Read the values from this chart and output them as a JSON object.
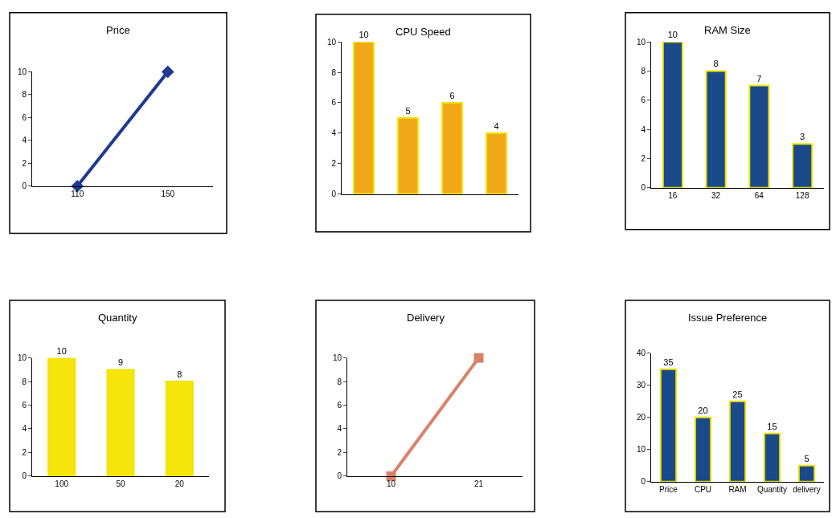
{
  "chart_data": [
    {
      "type": "line",
      "title": "Price",
      "categories": [
        "110",
        "150"
      ],
      "values": [
        0,
        10
      ],
      "color": "#1f3a93",
      "marker": "diamond",
      "ylim": [
        0,
        10
      ],
      "yticks": [
        0,
        2,
        4,
        6,
        8,
        10
      ]
    },
    {
      "type": "bar",
      "title": "CPU Speed",
      "categories": [
        null,
        null,
        null,
        null
      ],
      "values": [
        10,
        5,
        6,
        4
      ],
      "color": "#f0a818",
      "ylim": [
        0,
        10
      ],
      "yticks": [
        0,
        2,
        4,
        6,
        8,
        10
      ],
      "data_labels": true
    },
    {
      "type": "bar",
      "title": "RAM Size",
      "categories": [
        "16",
        "32",
        "64",
        "128"
      ],
      "values": [
        10,
        8,
        7,
        3
      ],
      "color": "#1a4a8a",
      "ylim": [
        0,
        10
      ],
      "yticks": [
        0,
        2,
        4,
        6,
        8,
        10
      ],
      "data_labels": true
    },
    {
      "type": "bar",
      "title": "Quantity",
      "categories": [
        "100",
        "50",
        "20"
      ],
      "values": [
        10,
        9,
        8
      ],
      "color": "#f5e50a",
      "ylim": [
        0,
        10
      ],
      "yticks": [
        0,
        2,
        4,
        6,
        8,
        10
      ],
      "data_labels": true
    },
    {
      "type": "line",
      "title": "Delivery",
      "categories": [
        "10",
        "21"
      ],
      "values": [
        0,
        10
      ],
      "color": "#d9826a",
      "marker": "square",
      "ylim": [
        0,
        10
      ],
      "yticks": [
        0,
        2,
        4,
        6,
        8,
        10
      ]
    },
    {
      "type": "bar",
      "title": "Issue Preference",
      "categories": [
        "Price",
        "CPU",
        "RAM",
        "Quantity",
        "delivery"
      ],
      "values": [
        35,
        20,
        25,
        15,
        5
      ],
      "color": "#1a4a8a",
      "ylim": [
        0,
        40
      ],
      "yticks": [
        0,
        10,
        20,
        30,
        40
      ],
      "data_labels": true
    }
  ]
}
